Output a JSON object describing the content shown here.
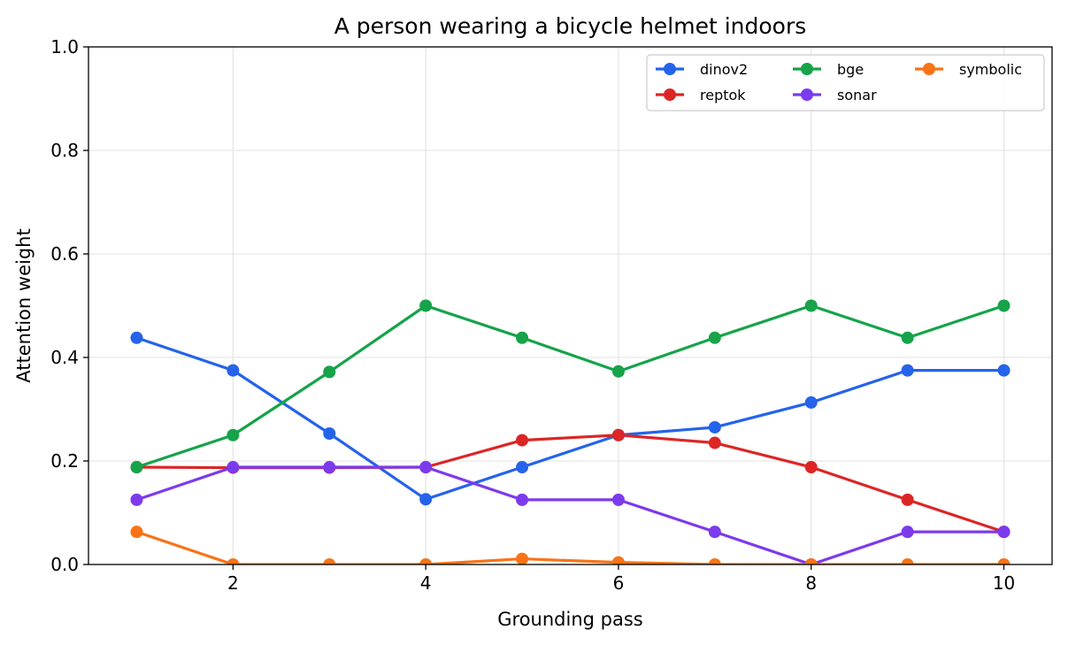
{
  "chart_data": {
    "type": "line",
    "title": "A person wearing a bicycle helmet indoors",
    "xlabel": "Grounding pass",
    "ylabel": "Attention weight",
    "x": [
      1,
      2,
      3,
      4,
      5,
      6,
      7,
      8,
      9,
      10
    ],
    "xlim": [
      0.5,
      10.5
    ],
    "ylim": [
      0,
      1
    ],
    "xticks": [
      "2",
      "4",
      "6",
      "8",
      "10"
    ],
    "xtick_values": [
      2,
      4,
      6,
      8,
      10
    ],
    "yticks": [
      "0.0",
      "0.2",
      "0.4",
      "0.6",
      "0.8",
      "1.0"
    ],
    "ytick_values": [
      0,
      0.2,
      0.4,
      0.6,
      0.8,
      1.0
    ],
    "grid": true,
    "legend_position": "top-right",
    "series": [
      {
        "name": "dinov2",
        "color": "#2563eb",
        "values": [
          0.438,
          0.375,
          0.253,
          0.126,
          0.188,
          0.25,
          0.265,
          0.313,
          0.375,
          0.375
        ]
      },
      {
        "name": "reptok",
        "color": "#dc2626",
        "values": [
          0.188,
          0.187,
          0.187,
          0.188,
          0.24,
          0.25,
          0.235,
          0.188,
          0.125,
          0.063
        ]
      },
      {
        "name": "bge",
        "color": "#16a34a",
        "values": [
          0.188,
          0.25,
          0.372,
          0.5,
          0.438,
          0.373,
          0.438,
          0.5,
          0.438,
          0.5
        ]
      },
      {
        "name": "sonar",
        "color": "#7c3aed",
        "values": [
          0.125,
          0.188,
          0.188,
          0.188,
          0.125,
          0.125,
          0.063,
          0.0,
          0.063,
          0.063
        ]
      },
      {
        "name": "symbolic",
        "color": "#f97316",
        "values": [
          0.063,
          0.0,
          0.0,
          0.0,
          0.011,
          0.004,
          0.0,
          0.0,
          0.0,
          0.0
        ]
      }
    ]
  }
}
